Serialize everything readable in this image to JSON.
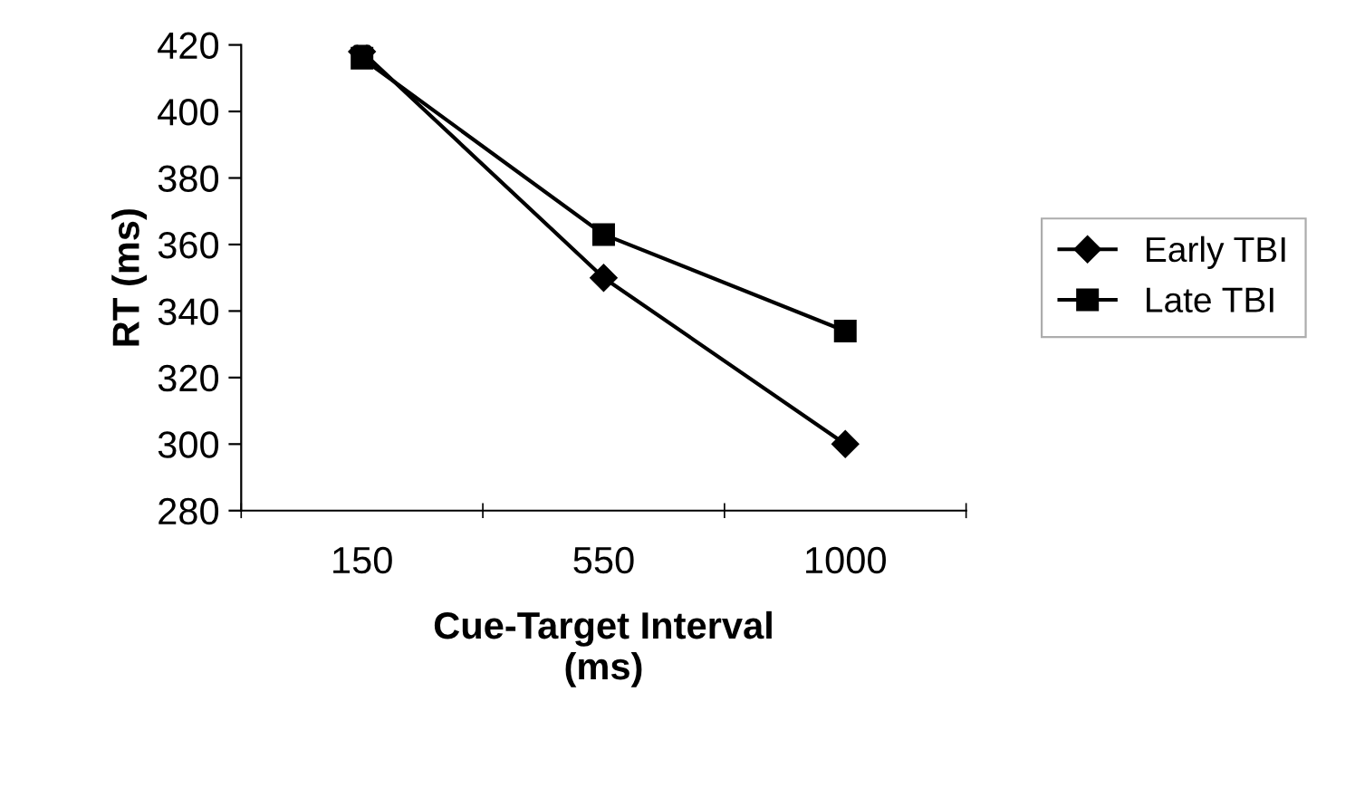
{
  "chart_data": {
    "type": "line",
    "xlabel": "Cue-Target Interval\n(ms)",
    "ylabel": "RT (ms)",
    "categories": [
      "150",
      "550",
      "1000"
    ],
    "series": [
      {
        "name": "Early TBI",
        "color": "#000000",
        "values": [
          418,
          350,
          300
        ],
        "marker": "diamond"
      },
      {
        "name": "Late TBI",
        "color": "#000000",
        "values": [
          416,
          363,
          334
        ],
        "marker": "square"
      }
    ],
    "ylim": [
      280,
      420
    ],
    "yticks": [
      280,
      300,
      320,
      340,
      360,
      380,
      400,
      420
    ],
    "legend": "right",
    "grid": false,
    "line_style": "solid"
  }
}
